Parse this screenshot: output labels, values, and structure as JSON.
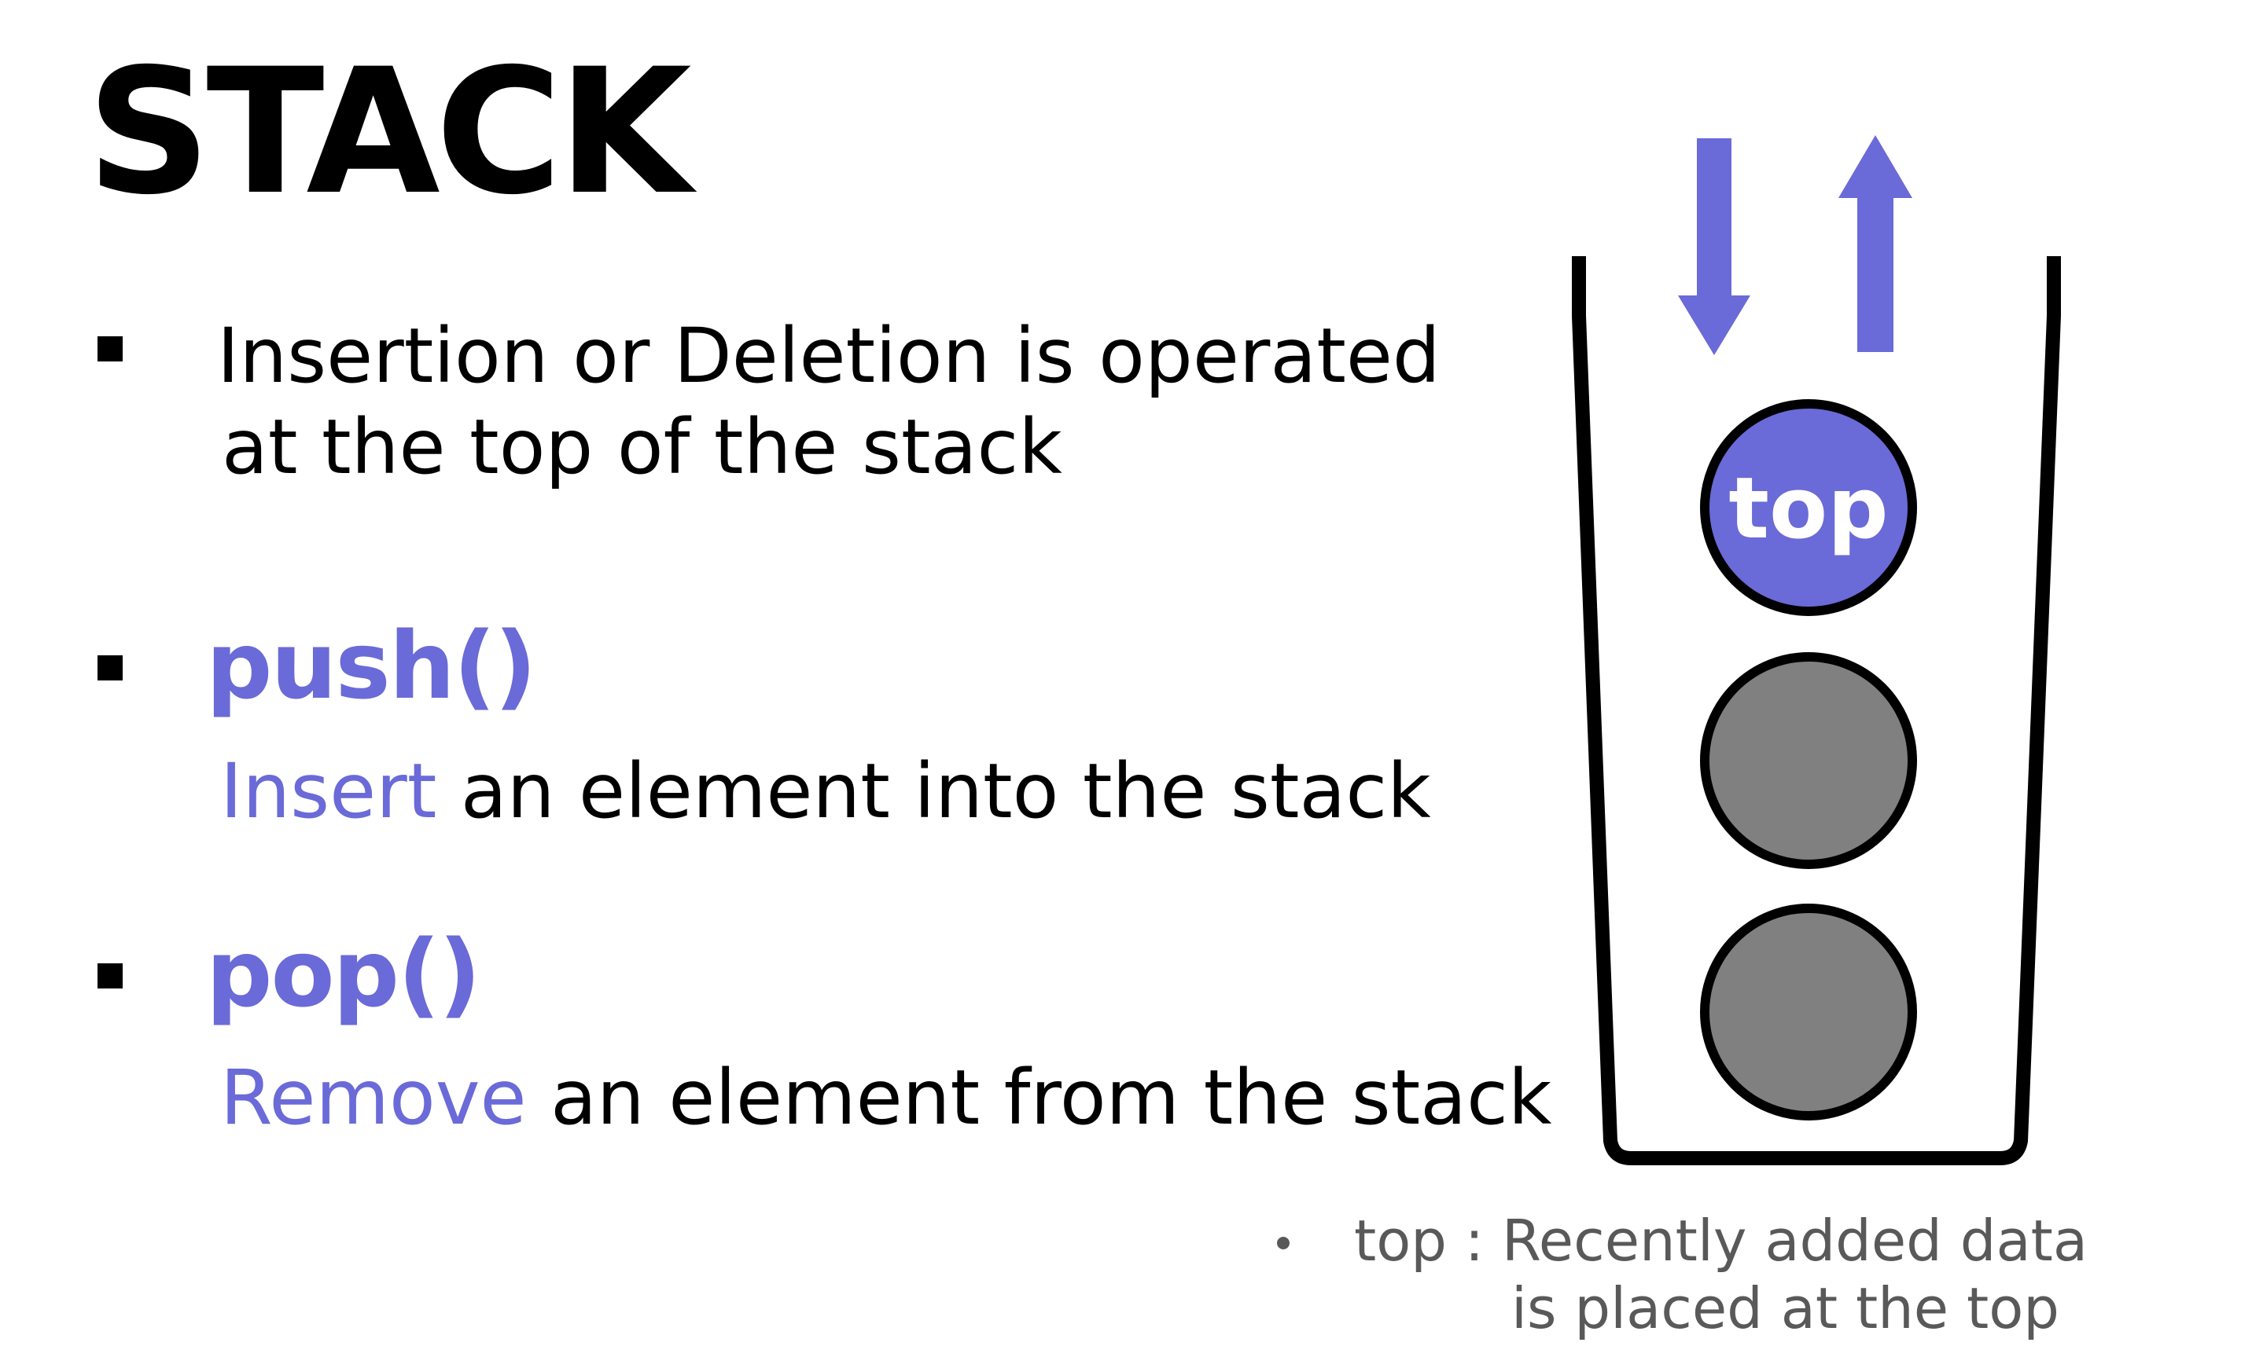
{
  "title": "STACK",
  "bullets": {
    "description_line1": "Insertion or Deletion is operated",
    "description_line2": "at the top of the stack",
    "push": {
      "name": "push()",
      "highlight": "Insert",
      "rest": " an element into the stack"
    },
    "pop": {
      "name": "pop()",
      "highlight": "Remove",
      "rest": " an element from the stack"
    }
  },
  "diagram": {
    "top_label": "top",
    "top_color": "#6a6ad8",
    "element_color": "#808080",
    "arrow_color": "#6a6ad8",
    "container_color": "#000000"
  },
  "note": {
    "line1": "top : Recently added data",
    "line2": "is placed at the top"
  }
}
